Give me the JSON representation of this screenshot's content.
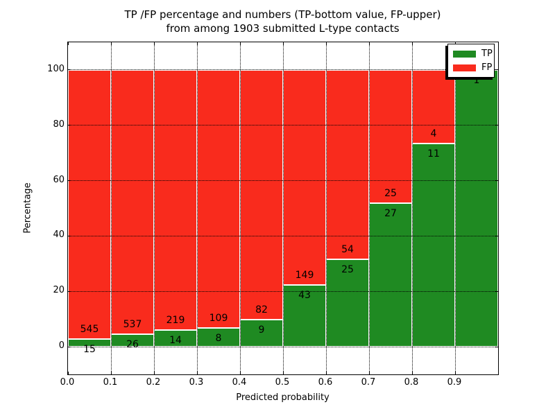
{
  "chart_data": {
    "type": "bar",
    "stacked": true,
    "title": "TP /FP percentage and numbers (TP-bottom value, FP-upper)\nfrom among 1903 submitted L-type contacts",
    "title_lines": [
      "TP /FP percentage and numbers (TP-bottom value, FP-upper)",
      "from among 1903 submitted L-type contacts"
    ],
    "total_submitted": 1903,
    "xlabel": "Predicted probability",
    "ylabel": "Percentage",
    "xlim": [
      0.0,
      1.0
    ],
    "ylim": [
      -10,
      110
    ],
    "x_tick_values": [
      0.0,
      0.1,
      0.2,
      0.3,
      0.4,
      0.5,
      0.6,
      0.7,
      0.8,
      0.9
    ],
    "x_tick_labels": [
      "0.0",
      "0.1",
      "0.2",
      "0.3",
      "0.4",
      "0.5",
      "0.6",
      "0.7",
      "0.8",
      "0.9"
    ],
    "y_tick_values": [
      0,
      20,
      40,
      60,
      80,
      100
    ],
    "y_tick_labels": [
      "0",
      "20",
      "40",
      "60",
      "80",
      "100"
    ],
    "grid": true,
    "grid_style": "dotted",
    "legend": {
      "position": "upper right",
      "entries": [
        {
          "label": "TP",
          "color": "#1f8a22"
        },
        {
          "label": "FP",
          "color": "#f92b1d"
        }
      ]
    },
    "bins": [
      {
        "x_start": 0.0,
        "x_end": 0.1,
        "tp": 15,
        "fp": 545,
        "tp_pct": 2.68
      },
      {
        "x_start": 0.1,
        "x_end": 0.2,
        "tp": 26,
        "fp": 537,
        "tp_pct": 4.62
      },
      {
        "x_start": 0.2,
        "x_end": 0.3,
        "tp": 14,
        "fp": 219,
        "tp_pct": 6.01
      },
      {
        "x_start": 0.3,
        "x_end": 0.4,
        "tp": 8,
        "fp": 109,
        "tp_pct": 6.84
      },
      {
        "x_start": 0.4,
        "x_end": 0.5,
        "tp": 9,
        "fp": 82,
        "tp_pct": 9.89
      },
      {
        "x_start": 0.5,
        "x_end": 0.6,
        "tp": 43,
        "fp": 149,
        "tp_pct": 22.4
      },
      {
        "x_start": 0.6,
        "x_end": 0.7,
        "tp": 25,
        "fp": 54,
        "tp_pct": 31.65
      },
      {
        "x_start": 0.7,
        "x_end": 0.8,
        "tp": 27,
        "fp": 25,
        "tp_pct": 51.92
      },
      {
        "x_start": 0.8,
        "x_end": 0.9,
        "tp": 11,
        "fp": 4,
        "tp_pct": 73.33
      },
      {
        "x_start": 0.9,
        "x_end": 1.0,
        "tp": 1,
        "fp": 0,
        "tp_pct": 100.0
      }
    ]
  },
  "colors": {
    "tp": "#1f8a22",
    "fp": "#f92b1d",
    "bar_edge": "#ffffff",
    "grid": "#000000",
    "frame": "#000000",
    "text": "#000000",
    "background": "#ffffff",
    "legend_shadow": "#000000"
  }
}
